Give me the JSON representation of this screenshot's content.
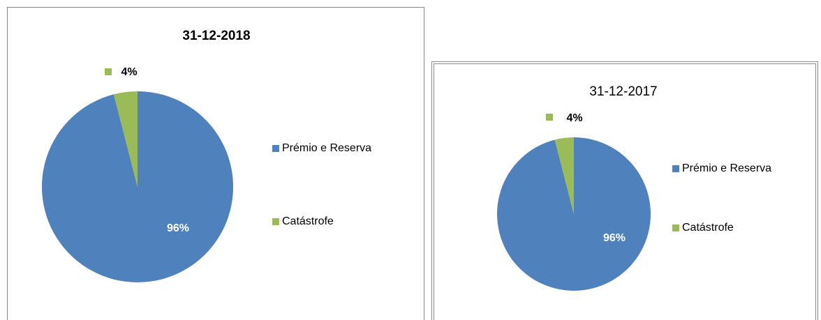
{
  "chart_data": [
    {
      "type": "pie",
      "title": "31-12-2018",
      "categories": [
        "Prémio e Reserva",
        "Catástrofe"
      ],
      "values": [
        96,
        4
      ],
      "value_labels": [
        "96%",
        "4%"
      ],
      "colors": [
        "#4f81bd",
        "#9bbb59"
      ]
    },
    {
      "type": "pie",
      "title": "31-12-2017",
      "categories": [
        "Prémio e Reserva",
        "Catástrofe"
      ],
      "values": [
        96,
        4
      ],
      "value_labels": [
        "96%",
        "4%"
      ],
      "colors": [
        "#4f81bd",
        "#9bbb59"
      ]
    }
  ]
}
